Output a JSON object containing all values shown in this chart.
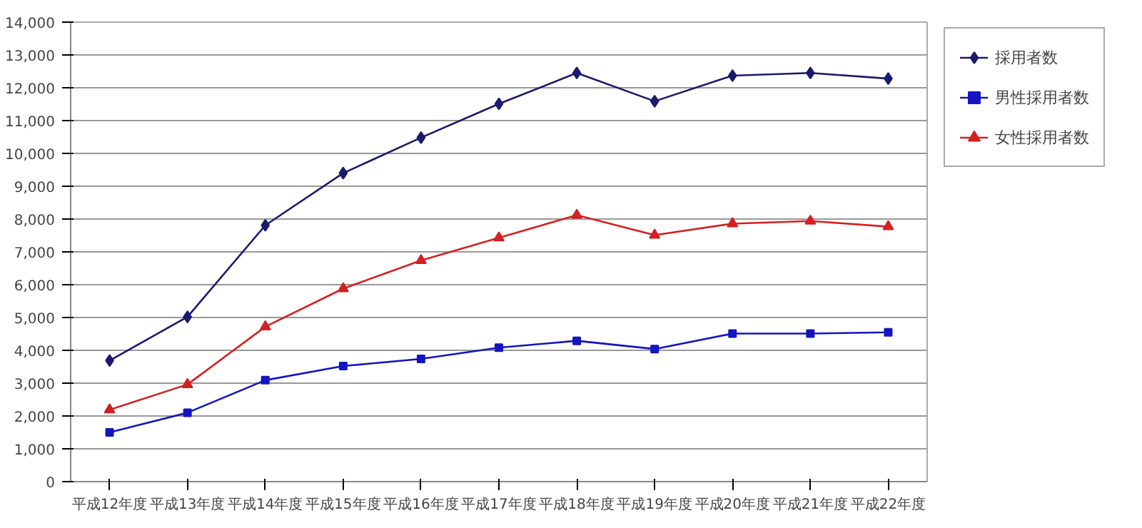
{
  "chart_data": {
    "type": "line",
    "categories": [
      "平成12年度",
      "平成13年度",
      "平成14年度",
      "平成15年度",
      "平成16年度",
      "平成17年度",
      "平成18年度",
      "平成19年度",
      "平成20年度",
      "平成21年度",
      "平成22年度"
    ],
    "series": [
      {
        "name": "採用者数",
        "color": "#1a1a6e",
        "marker": "diamond",
        "values": [
          3690,
          5020,
          7810,
          9400,
          10480,
          11510,
          12450,
          11590,
          12370,
          12450,
          12280
        ]
      },
      {
        "name": "男性採用者数",
        "color": "#1515c0",
        "marker": "square",
        "values": [
          1500,
          2100,
          3090,
          3520,
          3740,
          4080,
          4290,
          4040,
          4510,
          4510,
          4550
        ]
      },
      {
        "name": "女性採用者数",
        "color": "#d42020",
        "marker": "triangle",
        "values": [
          2190,
          2960,
          4720,
          5880,
          6740,
          7430,
          8120,
          7510,
          7860,
          7940,
          7770
        ]
      }
    ],
    "ylim": [
      0,
      14000
    ],
    "yticks": [
      0,
      {
        "value": 1000,
        "label": "1,000"
      },
      {
        "value": 2000,
        "label": "2,000"
      },
      {
        "value": 3000,
        "label": "3,000"
      },
      {
        "value": 4000,
        "label": "4,000"
      },
      {
        "value": 5000,
        "label": "5,000"
      },
      {
        "value": 6000,
        "label": "6,000"
      },
      {
        "value": 7000,
        "label": "7,000"
      },
      {
        "value": 8000,
        "label": "8,000"
      },
      {
        "value": 9000,
        "label": "9,000"
      },
      {
        "value": 10000,
        "label": "10,000"
      },
      {
        "value": 11000,
        "label": "11,000"
      },
      {
        "value": 12000,
        "label": "12,000"
      },
      {
        "value": 13000,
        "label": "13,000"
      },
      {
        "value": 14000,
        "label": "14,000"
      }
    ],
    "grid": "y",
    "legend": "top right",
    "line_style": "solid"
  }
}
